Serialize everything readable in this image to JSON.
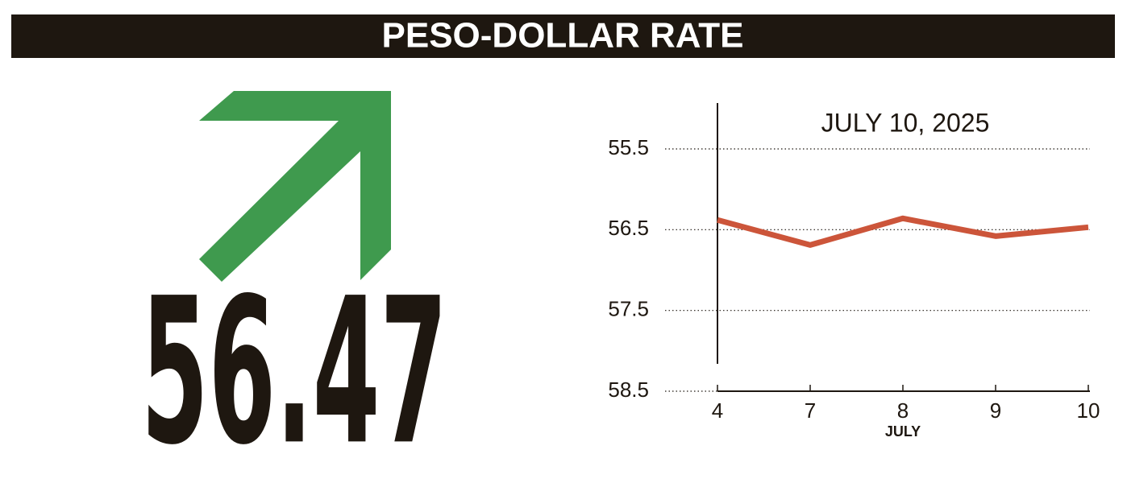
{
  "header": {
    "title": "PESO-DOLLAR RATE"
  },
  "headline_value": "56.47",
  "chart_data": {
    "type": "line",
    "annotation": "JULY 10, 2025",
    "x_label": "JULY",
    "categories": [
      "4",
      "7",
      "8",
      "9",
      "10"
    ],
    "series": [
      {
        "name": "Peso-dollar rate",
        "color": "#cc553a",
        "values": [
          56.38,
          56.69,
          56.36,
          56.58,
          56.47
        ]
      }
    ],
    "ylim": [
      58.5,
      55.5
    ],
    "yticks": [
      55.5,
      56.5,
      57.5,
      58.5
    ],
    "grid": true
  }
}
